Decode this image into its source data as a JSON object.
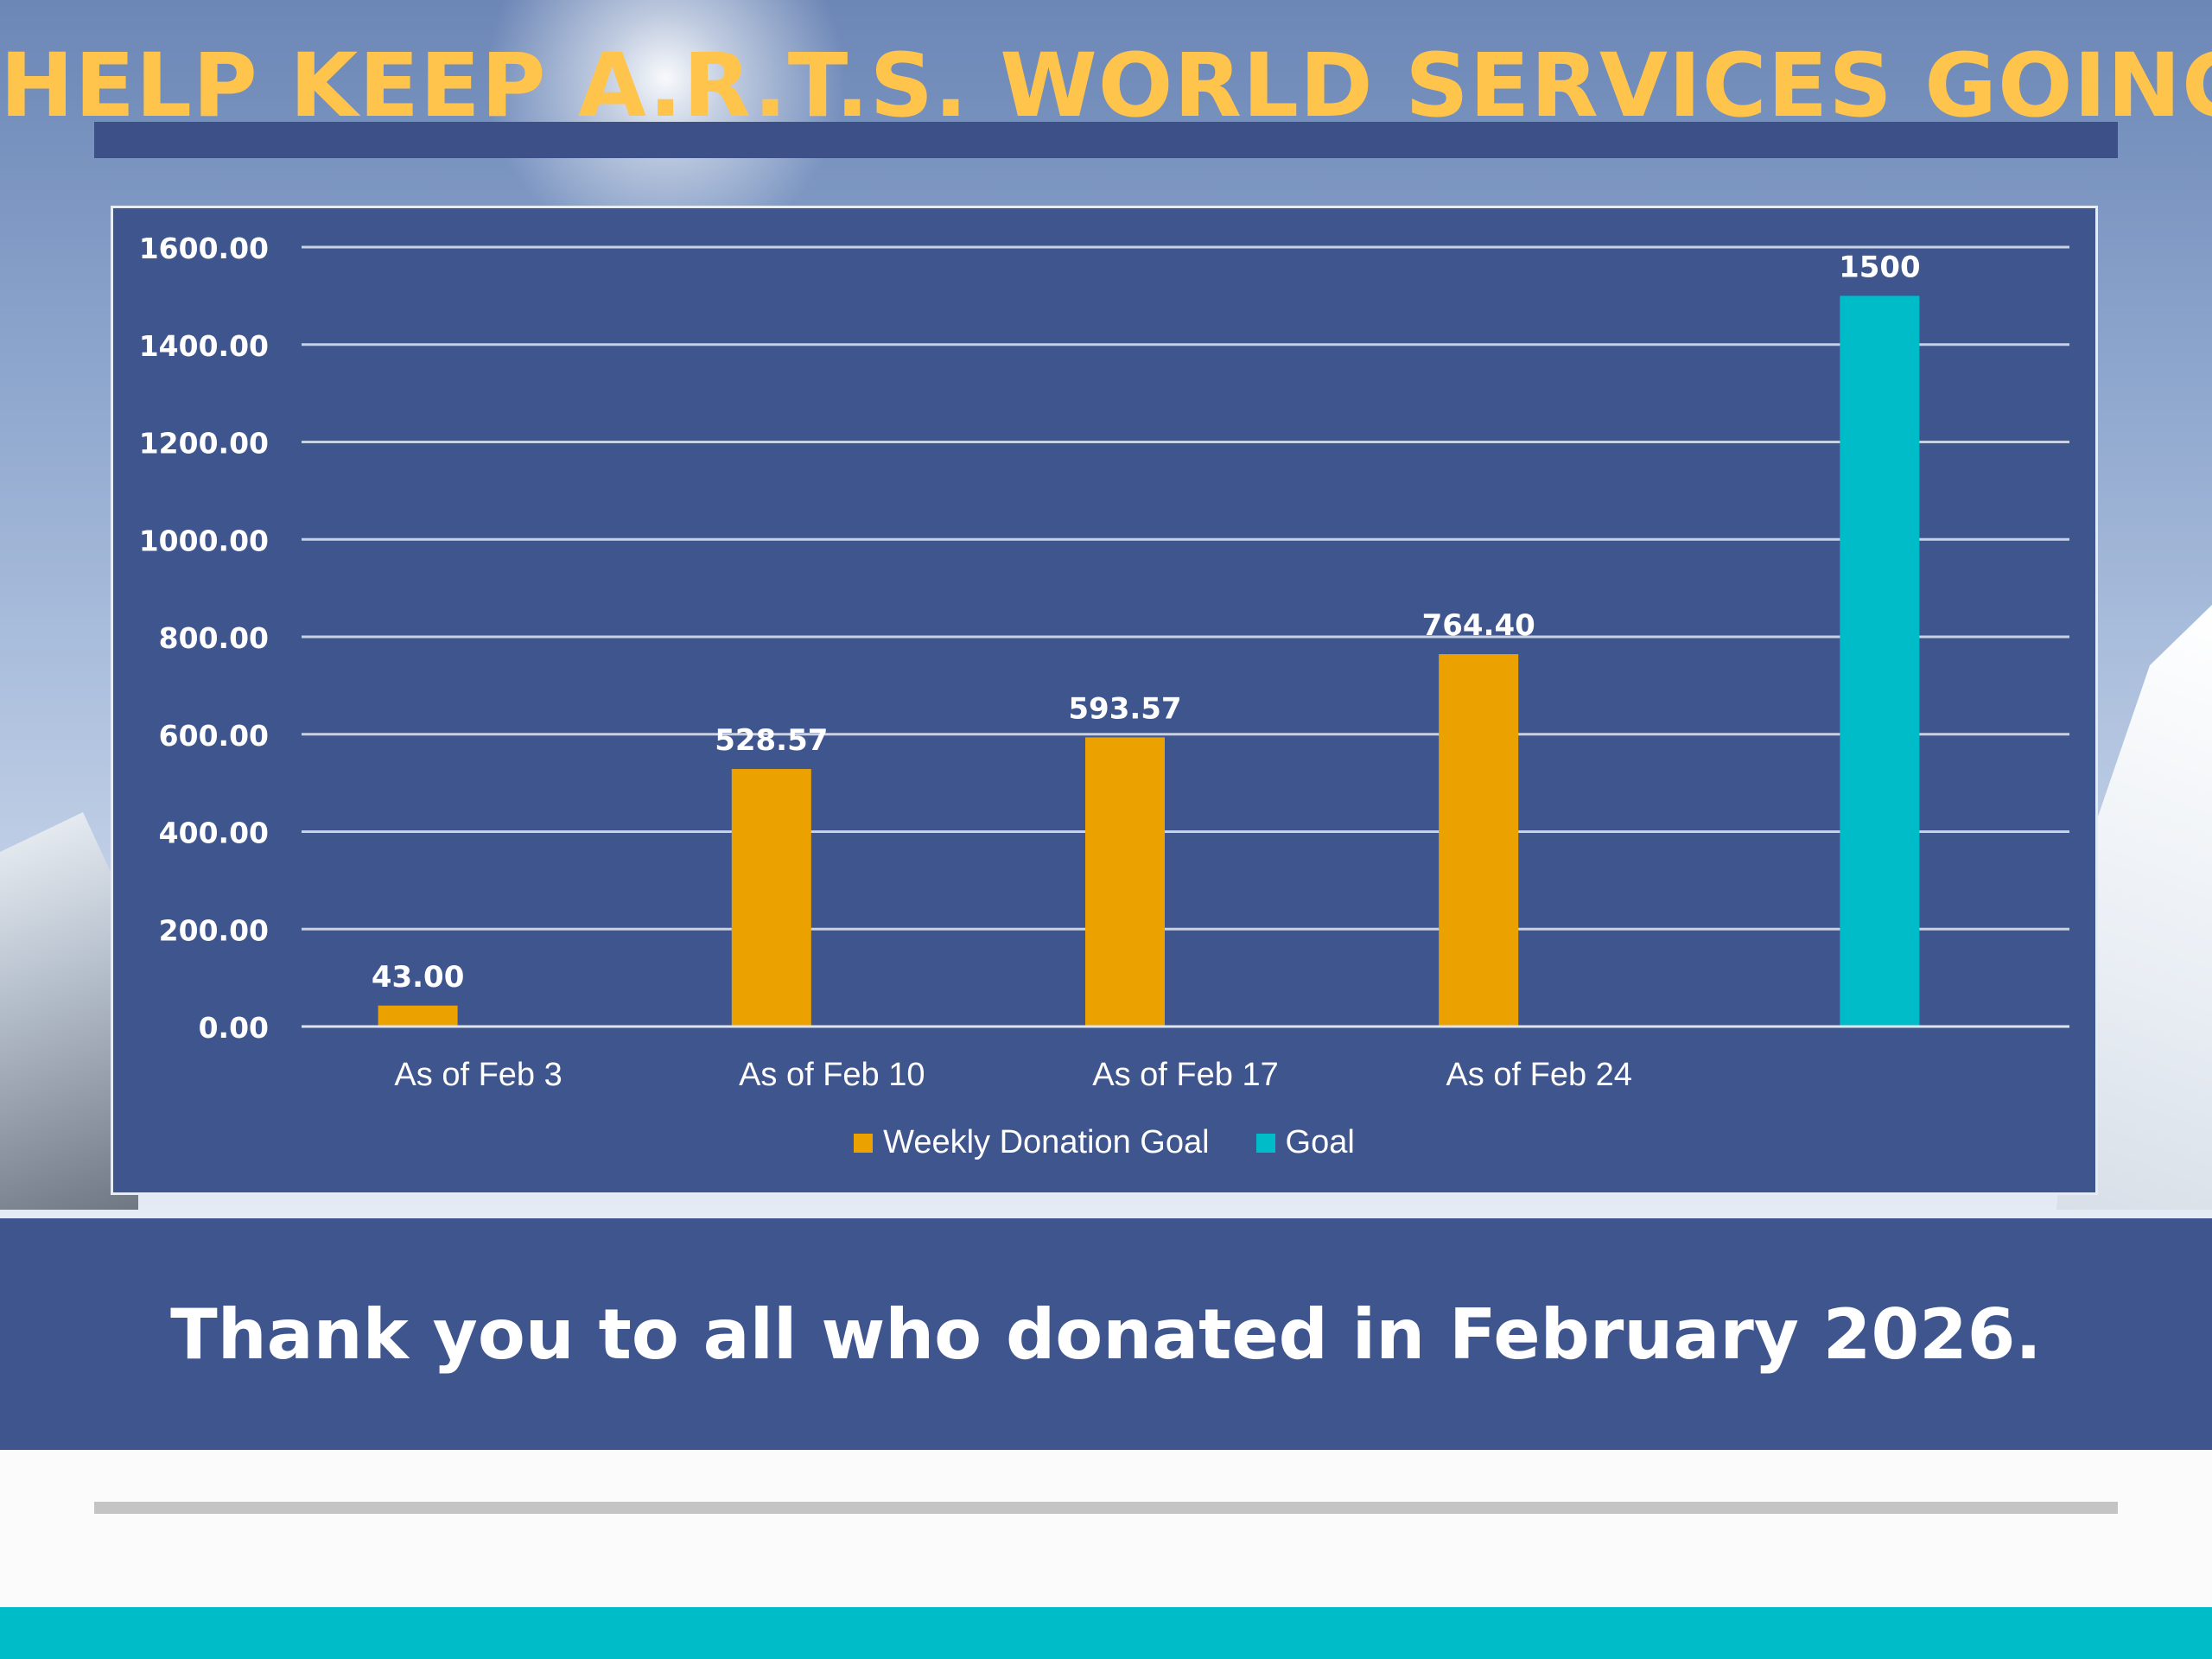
{
  "header": {
    "title": "HELP KEEP A.R.T.S. WORLD SERVICES GOING!"
  },
  "footer": {
    "thanks": "Thank you to all who donated in February 2026."
  },
  "colors": {
    "series_weekly": "#eba100",
    "series_goal": "#00bcc8",
    "panel": "#3f558e",
    "title": "#ffc44b"
  },
  "chart_data": {
    "type": "bar",
    "categories": [
      "As of Feb 3",
      "As of Feb 10",
      "As of Feb 17",
      "As of Feb 24",
      ""
    ],
    "series": [
      {
        "name": "Weekly Donation Goal",
        "values": [
          43.0,
          528.57,
          593.57,
          764.4,
          null
        ],
        "labels": [
          "43.00",
          "528.57",
          "593.57",
          "764.40",
          ""
        ]
      },
      {
        "name": "Goal",
        "values": [
          null,
          null,
          null,
          null,
          1500
        ],
        "labels": [
          "",
          "",
          "",
          "",
          "1500"
        ]
      }
    ],
    "ylim": [
      0,
      1600
    ],
    "yticks": [
      "0.00",
      "200.00",
      "400.00",
      "600.00",
      "800.00",
      "1000.00",
      "1200.00",
      "1400.00",
      "1600.00"
    ],
    "grid": true,
    "legend": "bottom",
    "title": "",
    "xlabel": "",
    "ylabel": ""
  }
}
